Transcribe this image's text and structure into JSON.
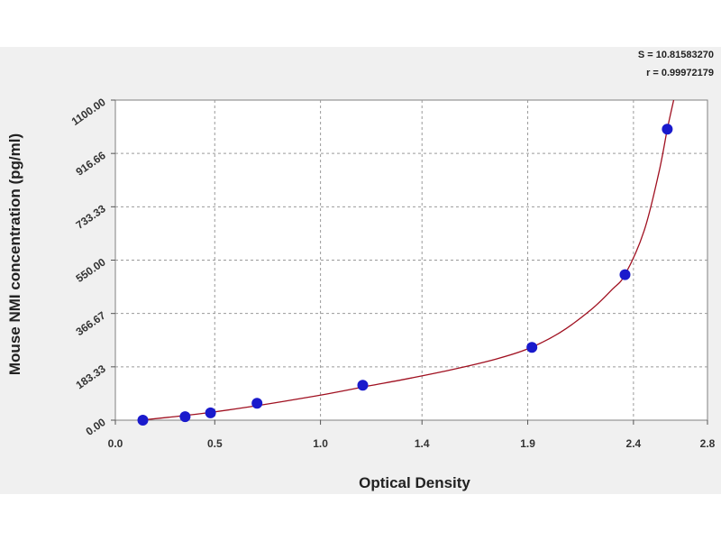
{
  "chart_data": {
    "type": "scatter",
    "xlabel": "Optical Density",
    "ylabel": "Mouse NMI concentration (pg/ml)",
    "xlim": [
      0.0,
      2.8
    ],
    "ylim": [
      0.0,
      1100.0
    ],
    "x_ticks": [
      "0.0",
      "0.5",
      "1.0",
      "1.4",
      "1.9",
      "2.4",
      "2.8"
    ],
    "y_ticks": [
      "0.00",
      "183.33",
      "366.67",
      "550.00",
      "733.33",
      "916.66",
      "1100.00"
    ],
    "x_tick_values": [
      0.0,
      0.47,
      0.97,
      1.45,
      1.95,
      2.45,
      2.8
    ],
    "y_tick_values": [
      0.0,
      183.33,
      366.67,
      550.0,
      733.33,
      916.66,
      1100.0
    ],
    "grid": true,
    "stats": [
      "S = 10.81583270",
      "r = 0.99972179"
    ],
    "series": [
      {
        "marker_color": "#1a1acc",
        "points": [
          {
            "x": 0.13,
            "y": 0
          },
          {
            "x": 0.33,
            "y": 12
          },
          {
            "x": 0.45,
            "y": 25
          },
          {
            "x": 0.67,
            "y": 58
          },
          {
            "x": 1.17,
            "y": 120
          },
          {
            "x": 1.97,
            "y": 250
          },
          {
            "x": 2.41,
            "y": 500
          },
          {
            "x": 2.61,
            "y": 1000
          }
        ]
      }
    ],
    "fit_curve": {
      "color": "#a01020",
      "points": [
        {
          "x": 0.12,
          "y": 0
        },
        {
          "x": 0.25,
          "y": 10
        },
        {
          "x": 0.4,
          "y": 22
        },
        {
          "x": 0.6,
          "y": 42
        },
        {
          "x": 0.8,
          "y": 65
        },
        {
          "x": 1.0,
          "y": 90
        },
        {
          "x": 1.2,
          "y": 118
        },
        {
          "x": 1.4,
          "y": 145
        },
        {
          "x": 1.6,
          "y": 175
        },
        {
          "x": 1.8,
          "y": 210
        },
        {
          "x": 1.95,
          "y": 245
        },
        {
          "x": 2.1,
          "y": 300
        },
        {
          "x": 2.25,
          "y": 380
        },
        {
          "x": 2.35,
          "y": 450
        },
        {
          "x": 2.41,
          "y": 500
        },
        {
          "x": 2.5,
          "y": 650
        },
        {
          "x": 2.57,
          "y": 850
        },
        {
          "x": 2.61,
          "y": 1000
        },
        {
          "x": 2.64,
          "y": 1100
        }
      ]
    }
  }
}
